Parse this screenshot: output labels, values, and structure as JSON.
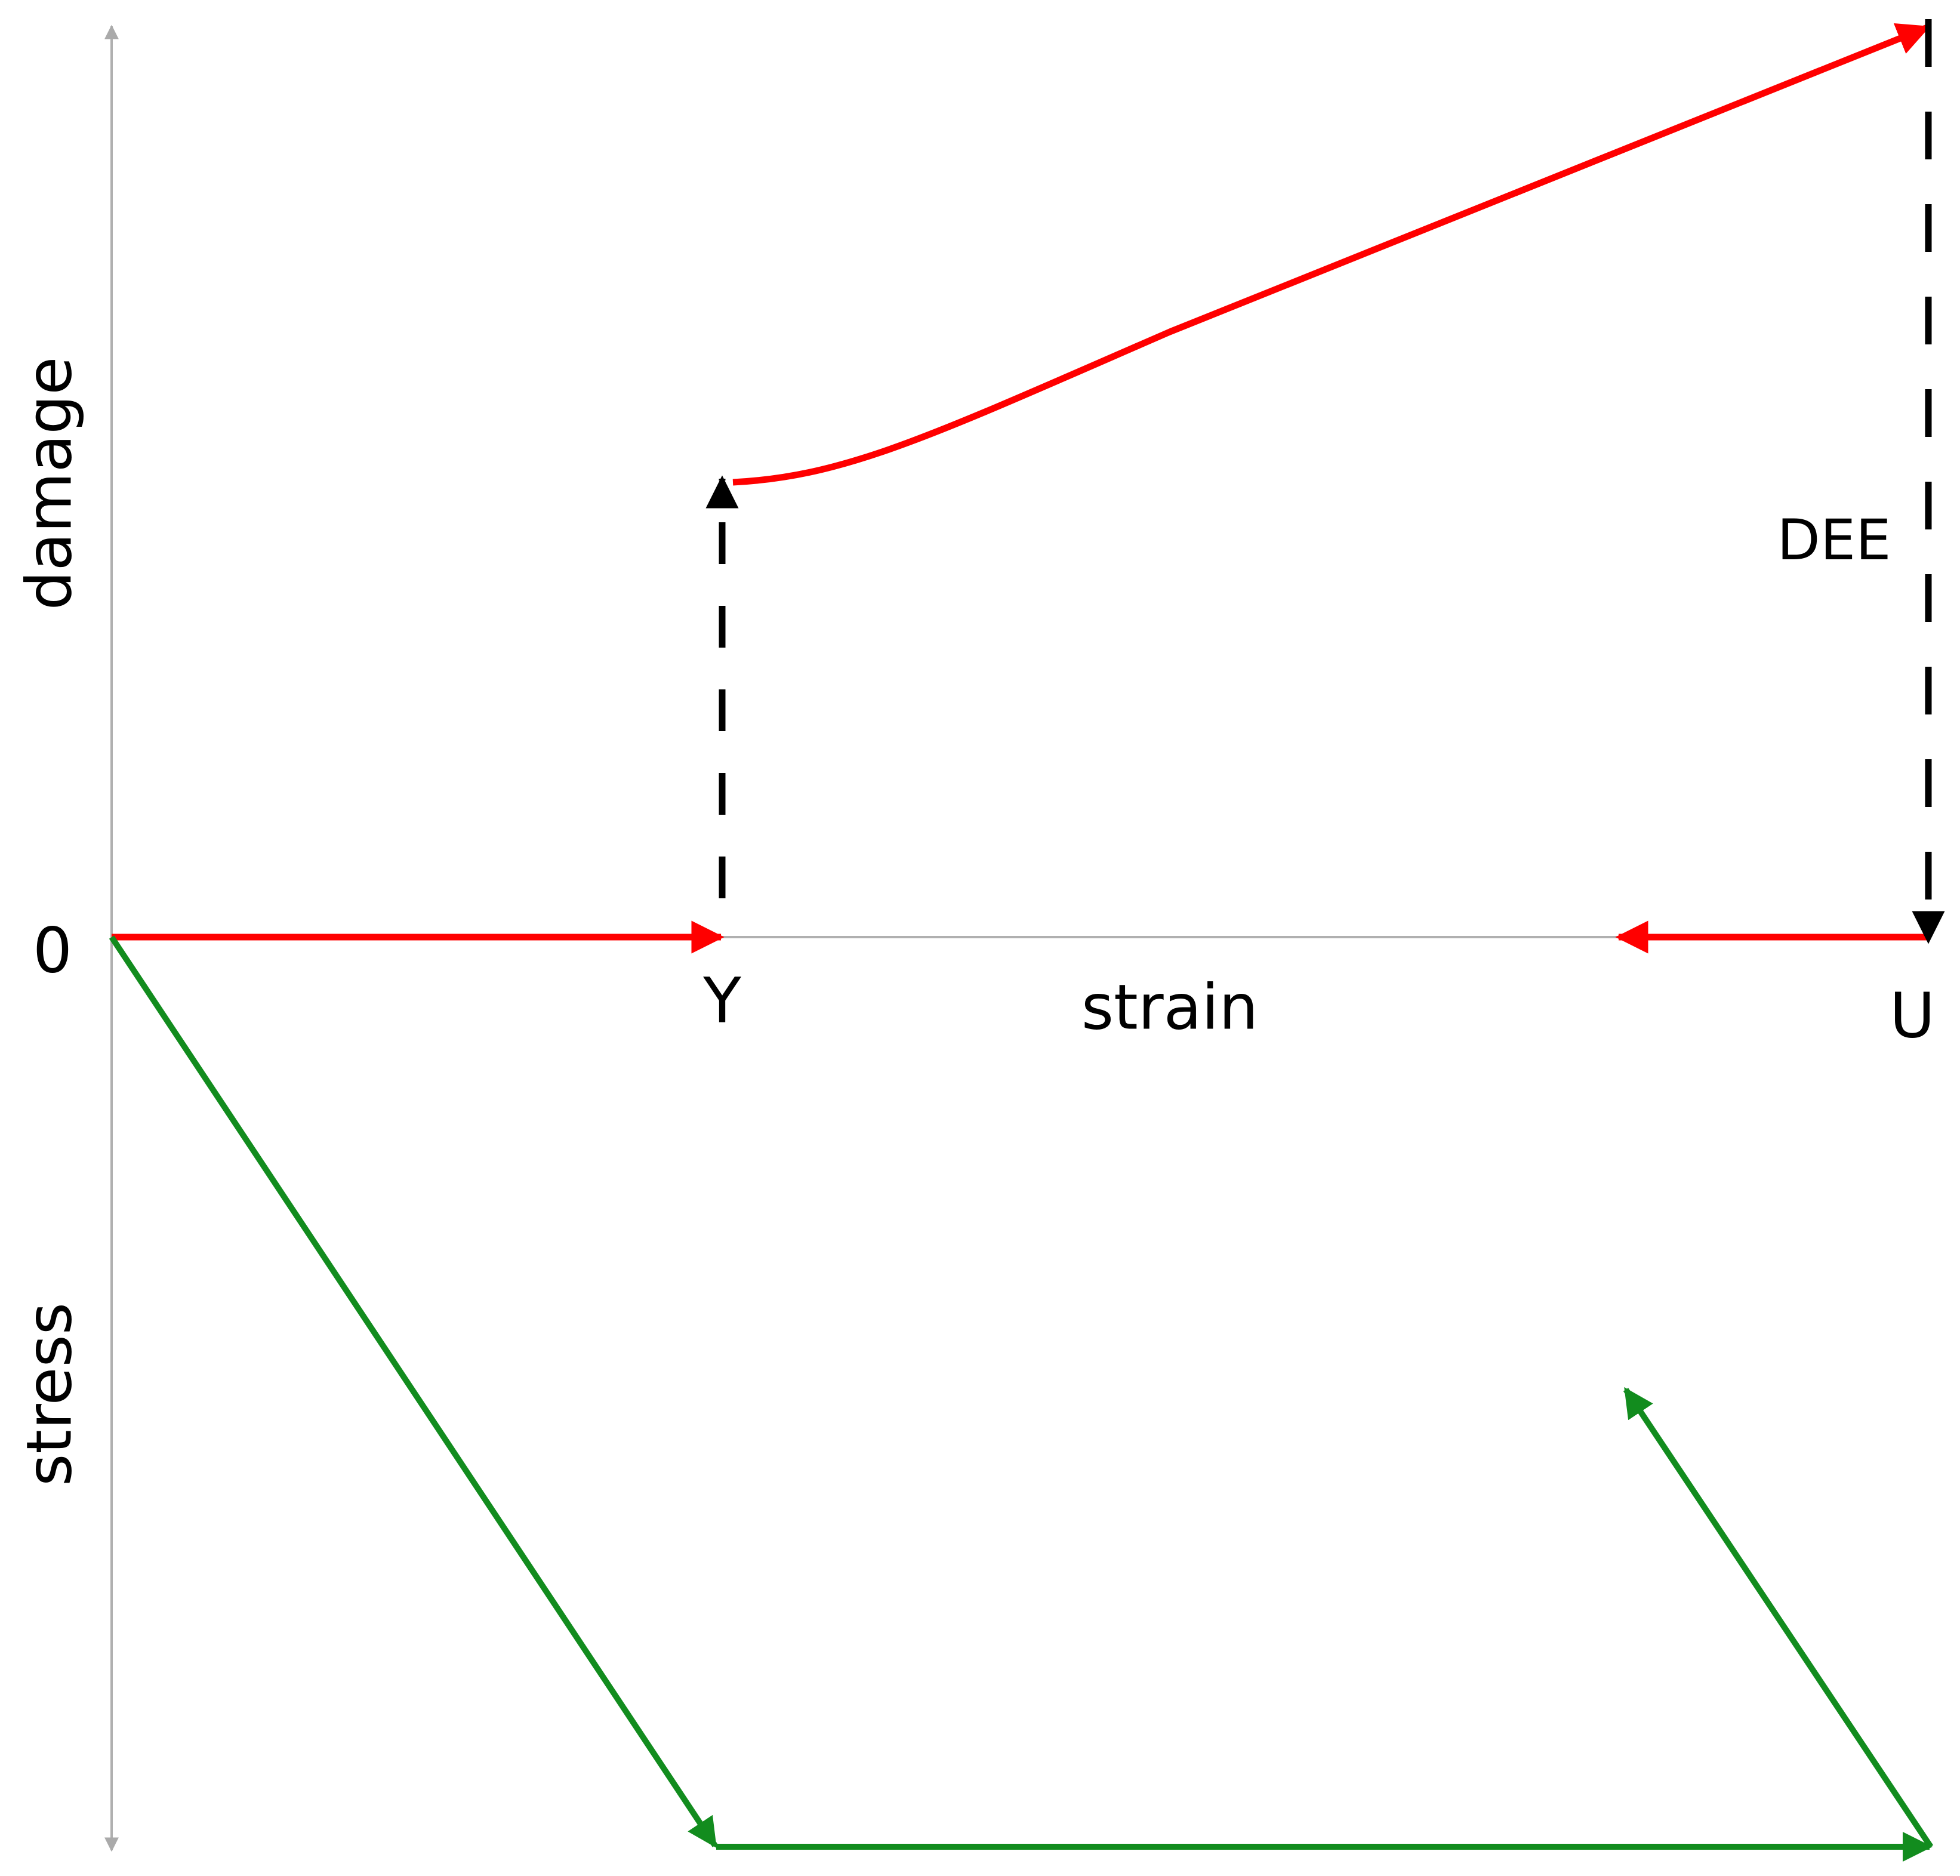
{
  "axes": {
    "vertical_top": "damage",
    "vertical_bottom": "stress",
    "horizontal": "strain"
  },
  "points": {
    "origin": "0",
    "yield": "Y",
    "ultimate": "U"
  },
  "annotation": "DEE"
}
